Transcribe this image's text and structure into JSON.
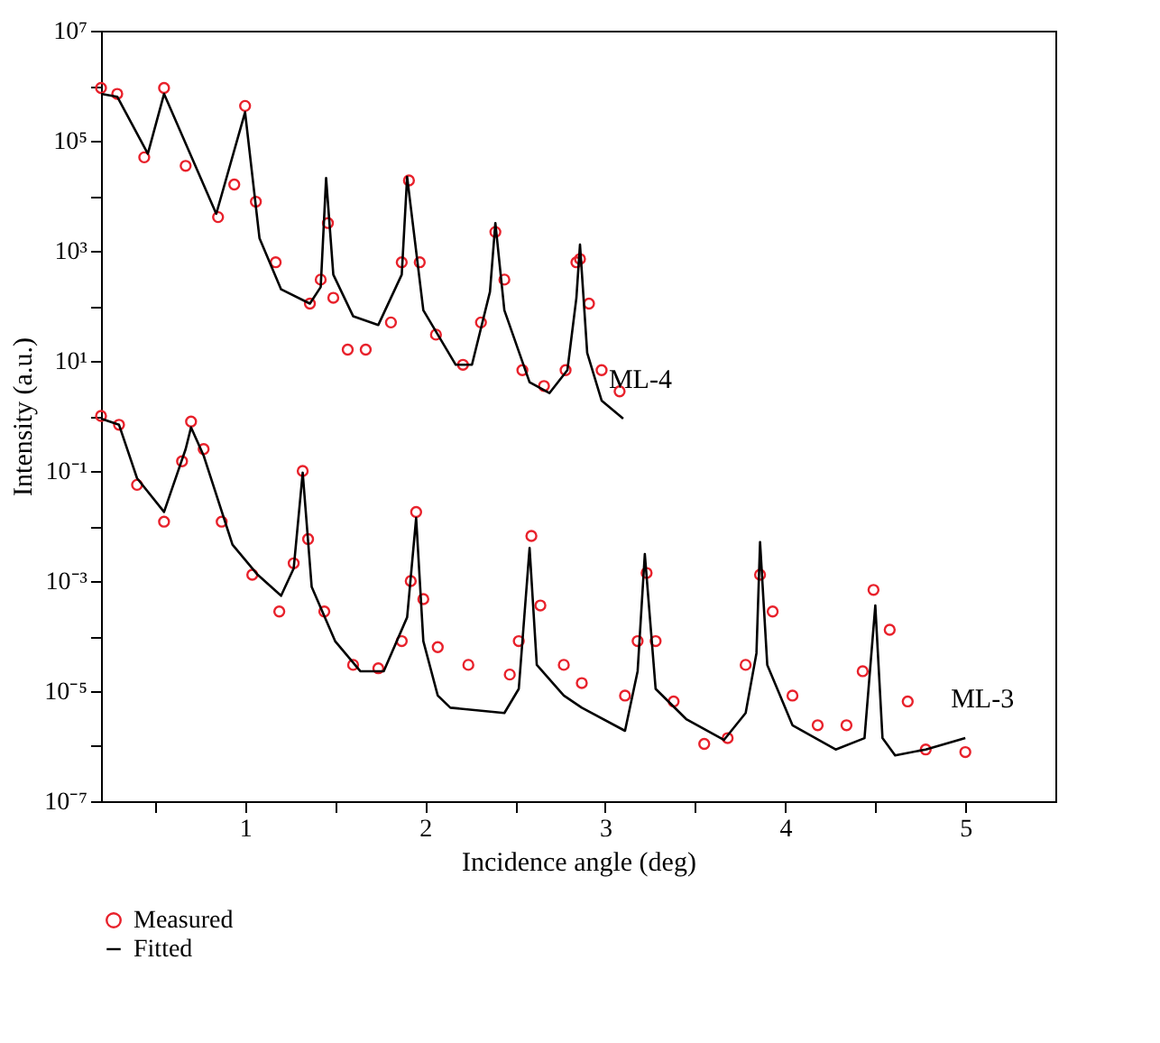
{
  "chart_data": {
    "type": "scatter",
    "xlabel": "Incidence angle (deg)",
    "ylabel": "Intensity (a.u.)",
    "log": "y",
    "grid": false,
    "legend": "bottom left",
    "xlim": [
      0.2,
      5.5
    ],
    "xticks": [
      {
        "value": 0.5,
        "label": null
      },
      1,
      {
        "value": 1.5,
        "label": null
      },
      2,
      {
        "value": 2.5,
        "label": null
      },
      3,
      {
        "value": 3.5,
        "label": null
      },
      4,
      {
        "value": 4.5,
        "label": null
      },
      5
    ],
    "ylim": [
      1e-07,
      10000000.0
    ],
    "yticks": [
      {
        "value": 10000000.0,
        "label": "10⁷"
      },
      {
        "value": 1000000.0,
        "label": null
      },
      {
        "value": 100000.0,
        "label": "10⁵"
      },
      {
        "value": 10000.0,
        "label": null
      },
      {
        "value": 1000.0,
        "label": "10³"
      },
      {
        "value": 100.0,
        "label": null
      },
      {
        "value": 10.0,
        "label": "10¹"
      },
      {
        "value": 1,
        "label": null
      },
      {
        "value": 0.1,
        "label": "10⁻¹"
      },
      {
        "value": 0.01,
        "label": null
      },
      {
        "value": 0.001,
        "label": "10⁻³"
      },
      {
        "value": 0.0001,
        "label": null
      },
      {
        "value": 1e-05,
        "label": "10⁻⁵"
      },
      {
        "value": 1e-06,
        "label": null
      },
      {
        "value": 1e-07,
        "label": "10⁻⁷"
      }
    ],
    "annotations": [
      "ML-4",
      "ML-3"
    ],
    "series": [
      {
        "name": "Measured",
        "marker": "circle",
        "color": "#e8212b",
        "x": [
          0.2,
          0.29,
          0.44,
          0.55,
          0.67,
          0.85,
          0.94,
          1.0,
          1.06,
          1.17,
          1.36,
          1.42,
          1.46,
          1.49,
          1.57,
          1.67,
          1.81,
          1.87,
          1.91,
          1.97,
          2.06,
          2.21,
          2.31,
          2.39,
          2.44,
          2.54,
          2.66,
          2.78,
          2.84,
          2.86,
          2.91,
          2.98,
          3.08,
          0.2,
          0.3,
          0.4,
          0.55,
          0.65,
          0.7,
          0.77,
          0.87,
          1.04,
          1.19,
          1.27,
          1.32,
          1.35,
          1.44,
          1.6,
          1.74,
          1.87,
          1.92,
          1.95,
          1.99,
          2.07,
          2.24,
          2.47,
          2.52,
          2.59,
          2.64,
          2.77,
          2.87,
          3.11,
          3.18,
          3.23,
          3.28,
          3.38,
          3.55,
          3.68,
          3.78,
          3.86,
          3.93,
          4.04,
          4.18,
          4.34,
          4.43,
          4.49,
          4.58,
          4.68,
          4.78,
          5.0
        ],
        "values": [
          910000.0,
          710000.0,
          50000.0,
          910000.0,
          35000.0,
          4100.0,
          16000.0,
          430000.0,
          7800.0,
          620,
          110,
          300,
          3200,
          140,
          16,
          16,
          50,
          620,
          19000.0,
          620,
          30,
          8.5,
          50,
          2200,
          300,
          6.8,
          3.5,
          6.8,
          620,
          710,
          110,
          6.8,
          2.8,
          1.0,
          0.69,
          0.056,
          0.012,
          0.15,
          0.79,
          0.25,
          0.012,
          0.0013,
          0.00028,
          0.0021,
          0.1,
          0.0058,
          0.00028,
          3e-05,
          2.6e-05,
          8.1e-05,
          0.001,
          0.018,
          0.00047,
          6.3e-05,
          3e-05,
          2e-05,
          8.1e-05,
          0.0066,
          0.00036,
          3e-05,
          1.4e-05,
          8.3e-06,
          8.1e-05,
          0.0014,
          8.1e-05,
          6.5e-06,
          1.1e-06,
          1.4e-06,
          3e-05,
          0.0013,
          0.00028,
          8.3e-06,
          2.4e-06,
          2.4e-06,
          2.3e-05,
          0.00069,
          0.00013,
          6.5e-06,
          8.7e-07,
          7.8e-07
        ]
      },
      {
        "name": "Fitted",
        "type": "line",
        "marker": "none",
        "line_style": "solid",
        "color": "#000000",
        "x": [
          0.2,
          0.29,
          0.46,
          0.55,
          0.84,
          1.0,
          1.08,
          1.2,
          1.36,
          1.42,
          1.45,
          1.49,
          1.6,
          1.74,
          1.87,
          1.9,
          1.99,
          2.17,
          2.26,
          2.36,
          2.39,
          2.44,
          2.58,
          2.69,
          2.79,
          2.84,
          2.86,
          2.9,
          2.98,
          3.1
        ],
        "values": [
          710000.0,
          630000.0,
          58000.0,
          710000.0,
          4700.0,
          330000.0,
          1700.0,
          200,
          110,
          220,
          21000.0,
          370,
          65,
          45,
          370,
          22000.0,
          83,
          8.5,
          8.5,
          180,
          3200,
          83,
          4.1,
          2.6,
          6.8,
          140,
          1300,
          14,
          1.9,
          0.89
        ]
      },
      {
        "type": "line",
        "marker": "none",
        "line_style": "solid",
        "color": "#000000",
        "x": [
          0.2,
          0.3,
          0.4,
          0.55,
          0.67,
          0.7,
          0.77,
          0.93,
          1.07,
          1.2,
          1.27,
          1.32,
          1.37,
          1.5,
          1.64,
          1.77,
          1.9,
          1.95,
          1.99,
          2.07,
          2.14,
          2.44,
          2.52,
          2.58,
          2.62,
          2.77,
          2.87,
          3.11,
          3.18,
          3.22,
          3.28,
          3.45,
          3.66,
          3.78,
          3.84,
          3.86,
          3.9,
          4.04,
          4.28,
          4.44,
          4.5,
          4.54,
          4.61,
          4.78,
          5.0
        ],
        "values": [
          0.89,
          0.69,
          0.074,
          0.018,
          0.25,
          0.62,
          0.19,
          0.0046,
          0.0013,
          0.00054,
          0.0017,
          0.093,
          0.00078,
          8.1e-05,
          2.3e-05,
          2.3e-05,
          0.00022,
          0.014,
          8.1e-05,
          8.3e-06,
          5e-06,
          4e-06,
          1.1e-05,
          0.004,
          3e-05,
          8.3e-06,
          5e-06,
          1.9e-06,
          2.3e-05,
          0.0031,
          1.1e-05,
          3.1e-06,
          1.3e-06,
          4e-06,
          4.9e-05,
          0.0051,
          3e-05,
          2.4e-06,
          8.7e-07,
          1.4e-06,
          0.00036,
          1.4e-06,
          6.8e-07,
          8.7e-07,
          1.4e-06
        ]
      }
    ]
  }
}
